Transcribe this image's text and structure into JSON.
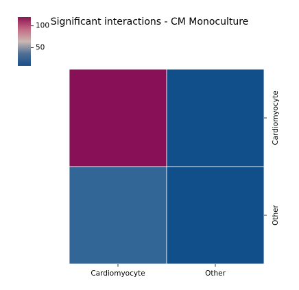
{
  "chart_data": {
    "type": "heatmap",
    "title": "Significant interactions - CM Monoculture",
    "rows": [
      "Cardiomyocyte",
      "Other"
    ],
    "columns": [
      "Cardiomyocyte",
      "Other"
    ],
    "values": [
      [
        120,
        8
      ],
      [
        28,
        8
      ]
    ],
    "colorbar": {
      "ticks": [
        100,
        50
      ],
      "range": [
        8,
        120
      ],
      "colors": [
        "#1a4f8a",
        "#4f6f96",
        "#c9b8b2",
        "#c46a85",
        "#8b1654"
      ]
    },
    "cell_colors": [
      [
        "#881056",
        "#114f8b"
      ],
      [
        "#326697",
        "#114f8b"
      ]
    ],
    "grid": false,
    "row_label_position": "right",
    "column_label_position": "bottom"
  }
}
